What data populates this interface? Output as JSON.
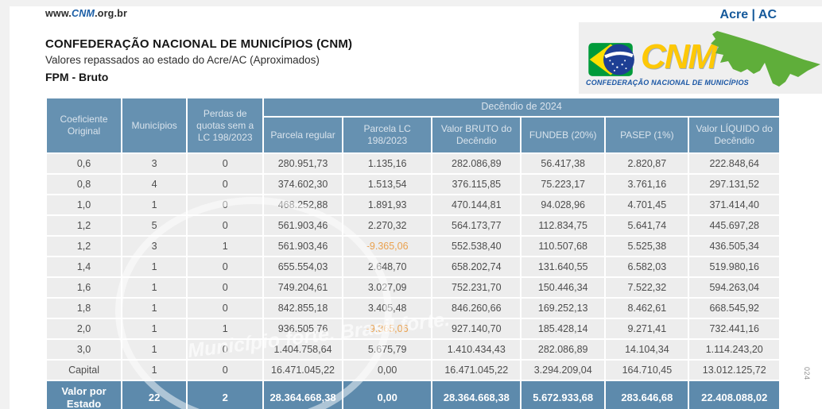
{
  "header": {
    "url": {
      "prefix": "www.",
      "brand": "CNM",
      "suffix": ".org.br"
    },
    "state_badge": "Acre | AC",
    "title": "CONFEDERAÇÃO NACIONAL DE MUNICÍPIOS (CNM)",
    "subtitle": "Valores repassados ao estado do Acre/AC (Aproximados)",
    "section_label": "FPM - Bruto"
  },
  "logo": {
    "brand": "CNM",
    "caption": "CONFEDERAÇÃO NACIONAL DE MUNICÍPIOS"
  },
  "watermark_text": "Município forte. Brasil forte.",
  "side_note": "024",
  "colors": {
    "header_blue": "#6691b1",
    "total_blue": "#5d8aac",
    "row_gray": "#ededed",
    "negative_orange": "#eaa14e",
    "accent_blue": "#15599b",
    "map_green": "#5fae3a",
    "logo_yellow": "#fdc807"
  },
  "table": {
    "left_columns": [
      "Coeficiente Original",
      "Municípios",
      "Perdas de quotas sem a LC 198/2023"
    ],
    "group_header": "Decêndio de 2024",
    "value_columns": [
      "Parcela regular",
      "Parcela LC 198/2023",
      "Valor BRUTO do Decêndio",
      "FUNDEB (20%)",
      "PASEP (1%)",
      "Valor LÍQUIDO do Decêndio"
    ],
    "rows": [
      [
        "0,6",
        "3",
        "0",
        "280.951,73",
        "1.135,16",
        "282.086,89",
        "56.417,38",
        "2.820,87",
        "222.848,64"
      ],
      [
        "0,8",
        "4",
        "0",
        "374.602,30",
        "1.513,54",
        "376.115,85",
        "75.223,17",
        "3.761,16",
        "297.131,52"
      ],
      [
        "1,0",
        "1",
        "0",
        "468.252,88",
        "1.891,93",
        "470.144,81",
        "94.028,96",
        "4.701,45",
        "371.414,40"
      ],
      [
        "1,2",
        "5",
        "0",
        "561.903,46",
        "2.270,32",
        "564.173,77",
        "112.834,75",
        "5.641,74",
        "445.697,28"
      ],
      [
        "1,2",
        "3",
        "1",
        "561.903,46",
        "-9.365,06",
        "552.538,40",
        "110.507,68",
        "5.525,38",
        "436.505,34"
      ],
      [
        "1,4",
        "1",
        "0",
        "655.554,03",
        "2.648,70",
        "658.202,74",
        "131.640,55",
        "6.582,03",
        "519.980,16"
      ],
      [
        "1,6",
        "1",
        "0",
        "749.204,61",
        "3.027,09",
        "752.231,70",
        "150.446,34",
        "7.522,32",
        "594.263,04"
      ],
      [
        "1,8",
        "1",
        "0",
        "842.855,18",
        "3.405,48",
        "846.260,66",
        "169.252,13",
        "8.462,61",
        "668.545,92"
      ],
      [
        "2,0",
        "1",
        "1",
        "936.505,76",
        "-9.365,06",
        "927.140,70",
        "185.428,14",
        "9.271,41",
        "732.441,16"
      ],
      [
        "3,0",
        "1",
        "0",
        "1.404.758,64",
        "5.675,79",
        "1.410.434,43",
        "282.086,89",
        "14.104,34",
        "1.114.243,20"
      ],
      [
        "Capital",
        "1",
        "0",
        "16.471.045,22",
        "0,00",
        "16.471.045,22",
        "3.294.209,04",
        "164.710,45",
        "13.012.125,72"
      ]
    ],
    "total_row": [
      "Valor por Estado",
      "22",
      "2",
      "28.364.668,38",
      "0,00",
      "28.364.668,38",
      "5.672.933,68",
      "283.646,68",
      "22.408.088,02"
    ]
  }
}
